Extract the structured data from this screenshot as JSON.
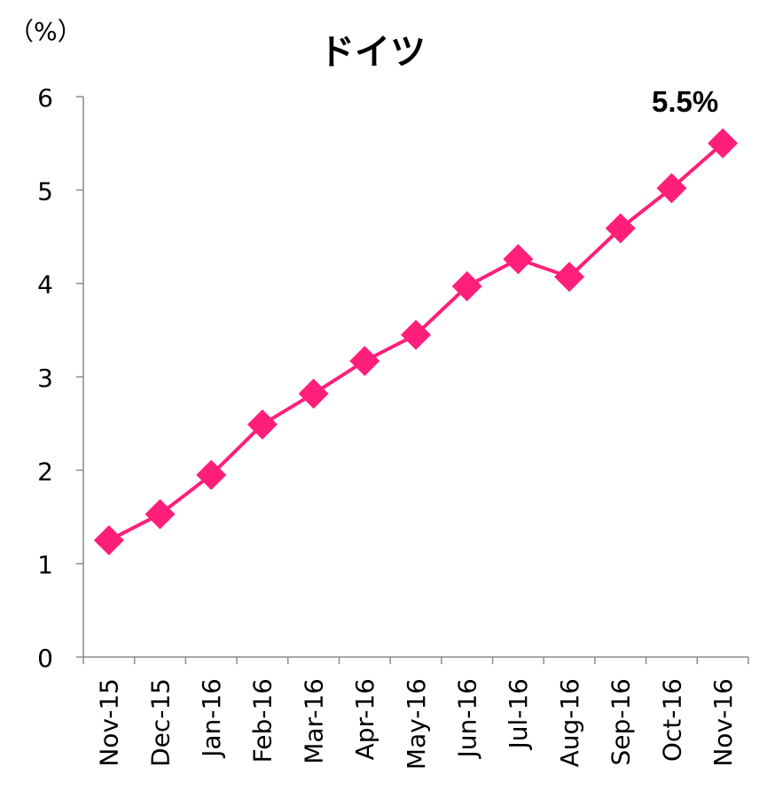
{
  "chart_data": {
    "type": "line",
    "title": "ドイツ",
    "unit_label": "（%）",
    "categories": [
      "Nov-15",
      "Dec-15",
      "Jan-16",
      "Feb-16",
      "Mar-16",
      "Apr-16",
      "May-16",
      "Jun-16",
      "Jul-16",
      "Aug-16",
      "Sep-16",
      "Oct-16",
      "Nov-16"
    ],
    "series": [
      {
        "values": [
          1.25,
          1.53,
          1.95,
          2.49,
          2.82,
          3.17,
          3.45,
          3.97,
          4.26,
          4.07,
          4.59,
          5.02,
          5.5
        ]
      }
    ],
    "ylim": [
      0,
      6
    ],
    "yticks": [
      "0",
      "1",
      "2",
      "3",
      "4",
      "5",
      "6"
    ],
    "grid": false,
    "marker": "diamond",
    "color": "#ff1f7a",
    "last_point_label": "5.5%"
  }
}
